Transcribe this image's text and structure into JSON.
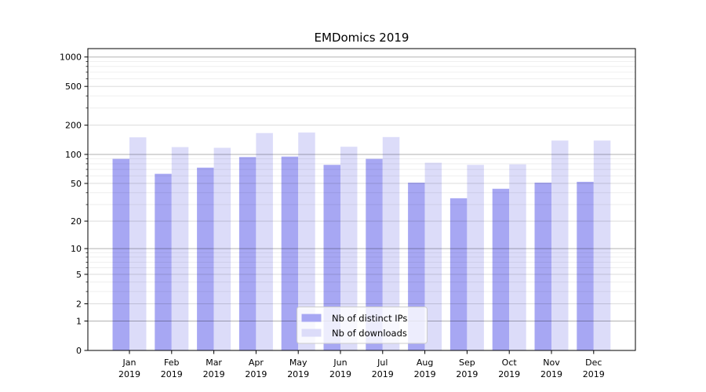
{
  "title": "EMDomics 2019",
  "chart_data": {
    "type": "bar",
    "categories": [
      "Jan",
      "Feb",
      "Mar",
      "Apr",
      "May",
      "Jun",
      "Jul",
      "Aug",
      "Sep",
      "Oct",
      "Nov",
      "Dec"
    ],
    "year": "2019",
    "series": [
      {
        "name": "Nb of distinct IPs",
        "color": "#a7a7f3",
        "values": [
          90,
          63,
          73,
          94,
          95,
          78,
          90,
          51,
          35,
          44,
          51,
          52
        ]
      },
      {
        "name": "Nb of downloads",
        "color": "#dcdcf9",
        "values": [
          150,
          119,
          117,
          166,
          168,
          120,
          151,
          82,
          78,
          79,
          139,
          139
        ]
      }
    ],
    "xlabel": "",
    "ylabel": "",
    "yscale": "symlog",
    "ytick_labels": [
      "0",
      "1",
      "2",
      "5",
      "10",
      "20",
      "50",
      "100",
      "200",
      "500",
      "1000"
    ],
    "yticks": [
      0,
      1,
      2,
      5,
      10,
      20,
      50,
      100,
      200,
      500,
      1000
    ],
    "decade_ticks": [
      1,
      10,
      100,
      1000
    ],
    "minor_ticks": [
      3,
      4,
      6,
      7,
      8,
      9,
      30,
      40,
      60,
      70,
      80,
      90,
      300,
      400,
      600,
      700,
      800,
      900
    ],
    "ylim": [
      0,
      1220
    ],
    "grid": true,
    "legend_position": "lower center"
  },
  "legend": {
    "entries": [
      "Nb of distinct IPs",
      "Nb of downloads"
    ]
  },
  "colors": {
    "bar_ips": "#a7a7f3",
    "bar_downloads": "#dcdcf9",
    "grid_decade": "rgba(0,0,0,0.30)",
    "grid_major": "rgba(0,0,0,0.16)",
    "grid_minor": "rgba(0,0,0,0.08)",
    "spine": "#000000",
    "tick_text": "#000000",
    "legend_bg": "rgba(255,255,255,0.8)",
    "legend_border": "#cccccc"
  }
}
